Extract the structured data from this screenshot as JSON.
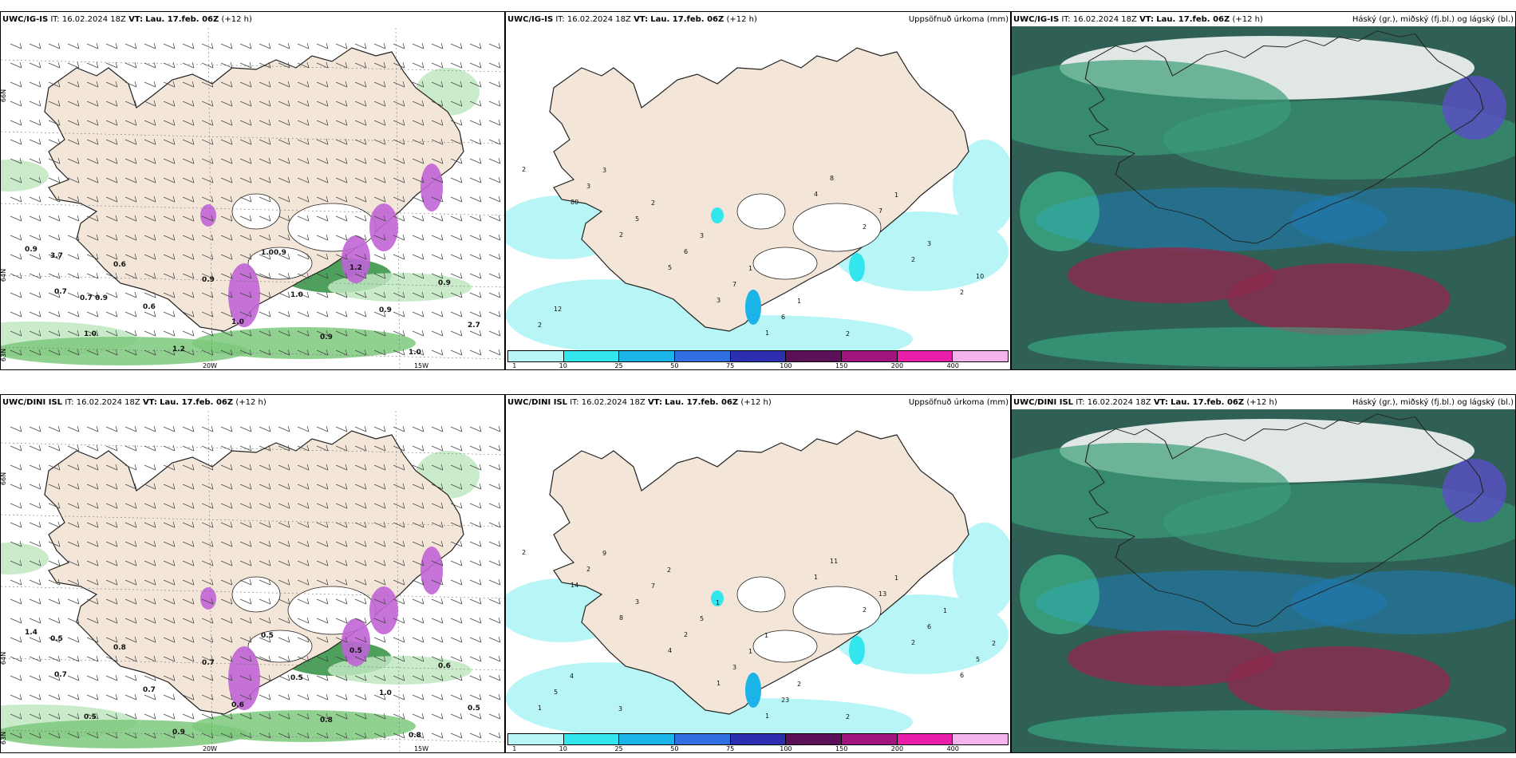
{
  "colors": {
    "land": "#f3e6d8",
    "coast": "#222222",
    "precip_scale": [
      "#b8f5f7",
      "#33e6ee",
      "#1bb4e8",
      "#2f6fe0",
      "#2b2fb0",
      "#5a1157",
      "#a0147f",
      "#e61ea8",
      "#f3b3ee"
    ],
    "cloud_high": "#3a9c78",
    "cloud_mid": "#1f7ab0",
    "cloud_low": "#8c2a4e"
  },
  "rows": [
    {
      "model": "UWC/IG-IS",
      "it_label": "IT:",
      "it_value": "16.02.2024 18Z",
      "vt_label": "VT:",
      "vt_value": "Lau. 17.feb. 06Z",
      "lead": "(+12 h)",
      "wind": {
        "axis_lon": [
          "20W",
          "15W"
        ],
        "axis_lat": [
          "66N",
          "64N",
          "63N"
        ],
        "values": [
          "0.9",
          "0.7",
          "1.0",
          "0.6",
          "0.6",
          "1.2",
          "0.9",
          "1.0",
          "1.00.9",
          "1.0",
          "0.9",
          "1.2",
          "0.9",
          "1.0",
          "0.9",
          "2.7",
          "3.7",
          "0.7 0.9"
        ]
      },
      "precip": {
        "title": "Uppsöfnuð úrkoma (mm)",
        "values": [
          "2",
          "80",
          "2",
          "5",
          "3",
          "1",
          "4",
          "2",
          "2",
          "2",
          "2",
          "3",
          "5",
          "6",
          "7",
          "6",
          "8",
          "7",
          "3",
          "10",
          "12",
          "3",
          "2",
          "3",
          "1",
          "1",
          "2",
          "1"
        ],
        "ticks": [
          "1",
          "10",
          "25",
          "50",
          "75",
          "100",
          "150",
          "200",
          "400"
        ]
      },
      "cloud": {
        "title": "Háský (gr.), miðský (fj.bl.) og lágský (bl.)"
      }
    },
    {
      "model": "UWC/DINI ISL",
      "it_label": "IT:",
      "it_value": "16.02.2024 18Z",
      "vt_label": "VT:",
      "vt_value": "Lau. 17.feb. 06Z",
      "lead": "(+12 h)",
      "wind": {
        "axis_lon": [
          "20W",
          "15W"
        ],
        "axis_lat": [
          "66N",
          "64N",
          "63N"
        ],
        "values": [
          "1.4",
          "0.7",
          "0.5",
          "0.8",
          "0.7",
          "0.9",
          "0.7",
          "0.6",
          "0.5",
          "0.5",
          "0.8",
          "0.5",
          "1.0",
          "0.8",
          "0.6",
          "0.5",
          "0.5"
        ]
      },
      "precip": {
        "title": "Uppsöfnuð úrkoma (mm)",
        "values": [
          "2",
          "14",
          "8",
          "4",
          "1",
          "1",
          "1",
          "2",
          "2",
          "6",
          "1",
          "2",
          "3",
          "2",
          "3",
          "23",
          "11",
          "13",
          "6",
          "5",
          "5",
          "9",
          "7",
          "5",
          "1",
          "2",
          "2",
          "1",
          "1",
          "2",
          "4",
          "3",
          "2",
          "1",
          "1"
        ],
        "ticks": [
          "1",
          "10",
          "25",
          "50",
          "75",
          "100",
          "150",
          "200",
          "400"
        ]
      },
      "cloud": {
        "title": "Háský (gr.), miðský (fj.bl.) og lágský (bl.)"
      }
    }
  ]
}
